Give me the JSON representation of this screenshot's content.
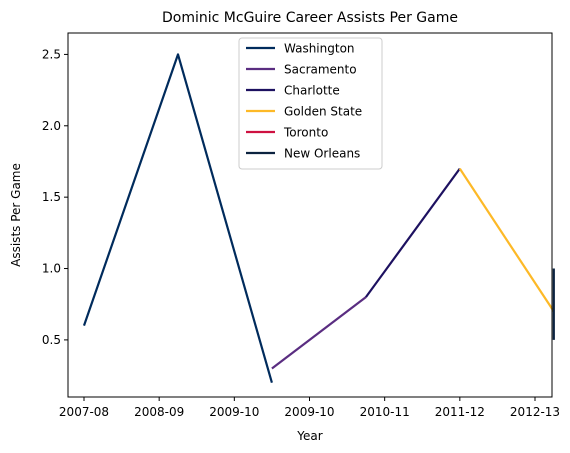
{
  "chart_data": {
    "type": "line",
    "title": "Dominic McGuire Career Assists Per Game",
    "xlabel": "Year",
    "ylabel": "Assists Per Game",
    "categories": [
      "2007-08",
      "2008-09",
      "2009-10",
      "2009-10",
      "2010-11",
      "2011-12",
      "2012-13"
    ],
    "yticks": [
      "0.5",
      "1.0",
      "1.5",
      "2.0",
      "2.5"
    ],
    "ylim": [
      0.1,
      2.65
    ],
    "grid": false,
    "legend_position": "top-center",
    "series": [
      {
        "name": "Washington",
        "color": "#002B5C",
        "points": [
          [
            0,
            0.6
          ],
          [
            1.25,
            2.5
          ],
          [
            2.5,
            0.2
          ]
        ]
      },
      {
        "name": "Sacramento",
        "color": "#5A2D81",
        "points": [
          [
            2.5,
            0.3
          ],
          [
            3.75,
            0.8
          ]
        ]
      },
      {
        "name": "Charlotte",
        "color": "#1D1160",
        "points": [
          [
            3.75,
            0.8
          ],
          [
            5.0,
            1.7
          ]
        ]
      },
      {
        "name": "Golden State",
        "color": "#FDB927",
        "points": [
          [
            5.0,
            1.7
          ],
          [
            6.25,
            0.7
          ]
        ]
      },
      {
        "name": "Toronto",
        "color": "#CE1141",
        "points": [
          [
            6.25,
            0.7
          ]
        ]
      },
      {
        "name": "New Orleans",
        "color": "#0C2340",
        "points": [
          [
            6.25,
            1.0
          ],
          [
            6.25,
            0.5
          ]
        ]
      }
    ]
  }
}
